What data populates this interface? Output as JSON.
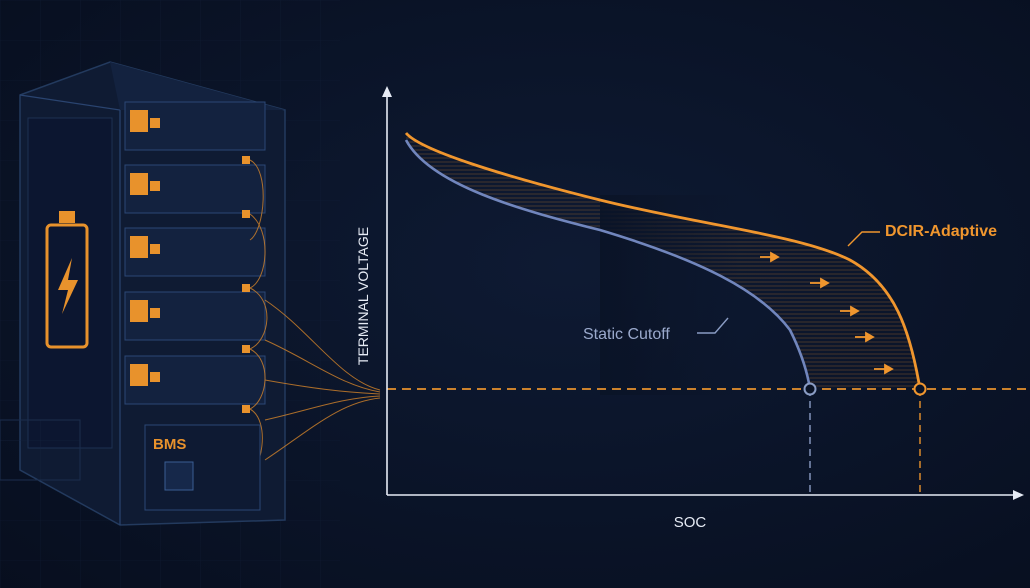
{
  "chart": {
    "y_axis_label": "TERMINAL VOLTAGE",
    "x_axis_label": "SOC",
    "curves": [
      {
        "label": "DCIR-Adaptive"
      },
      {
        "label": "Static Cutoff"
      }
    ]
  },
  "rack": {
    "bms_label": "BMS"
  }
}
